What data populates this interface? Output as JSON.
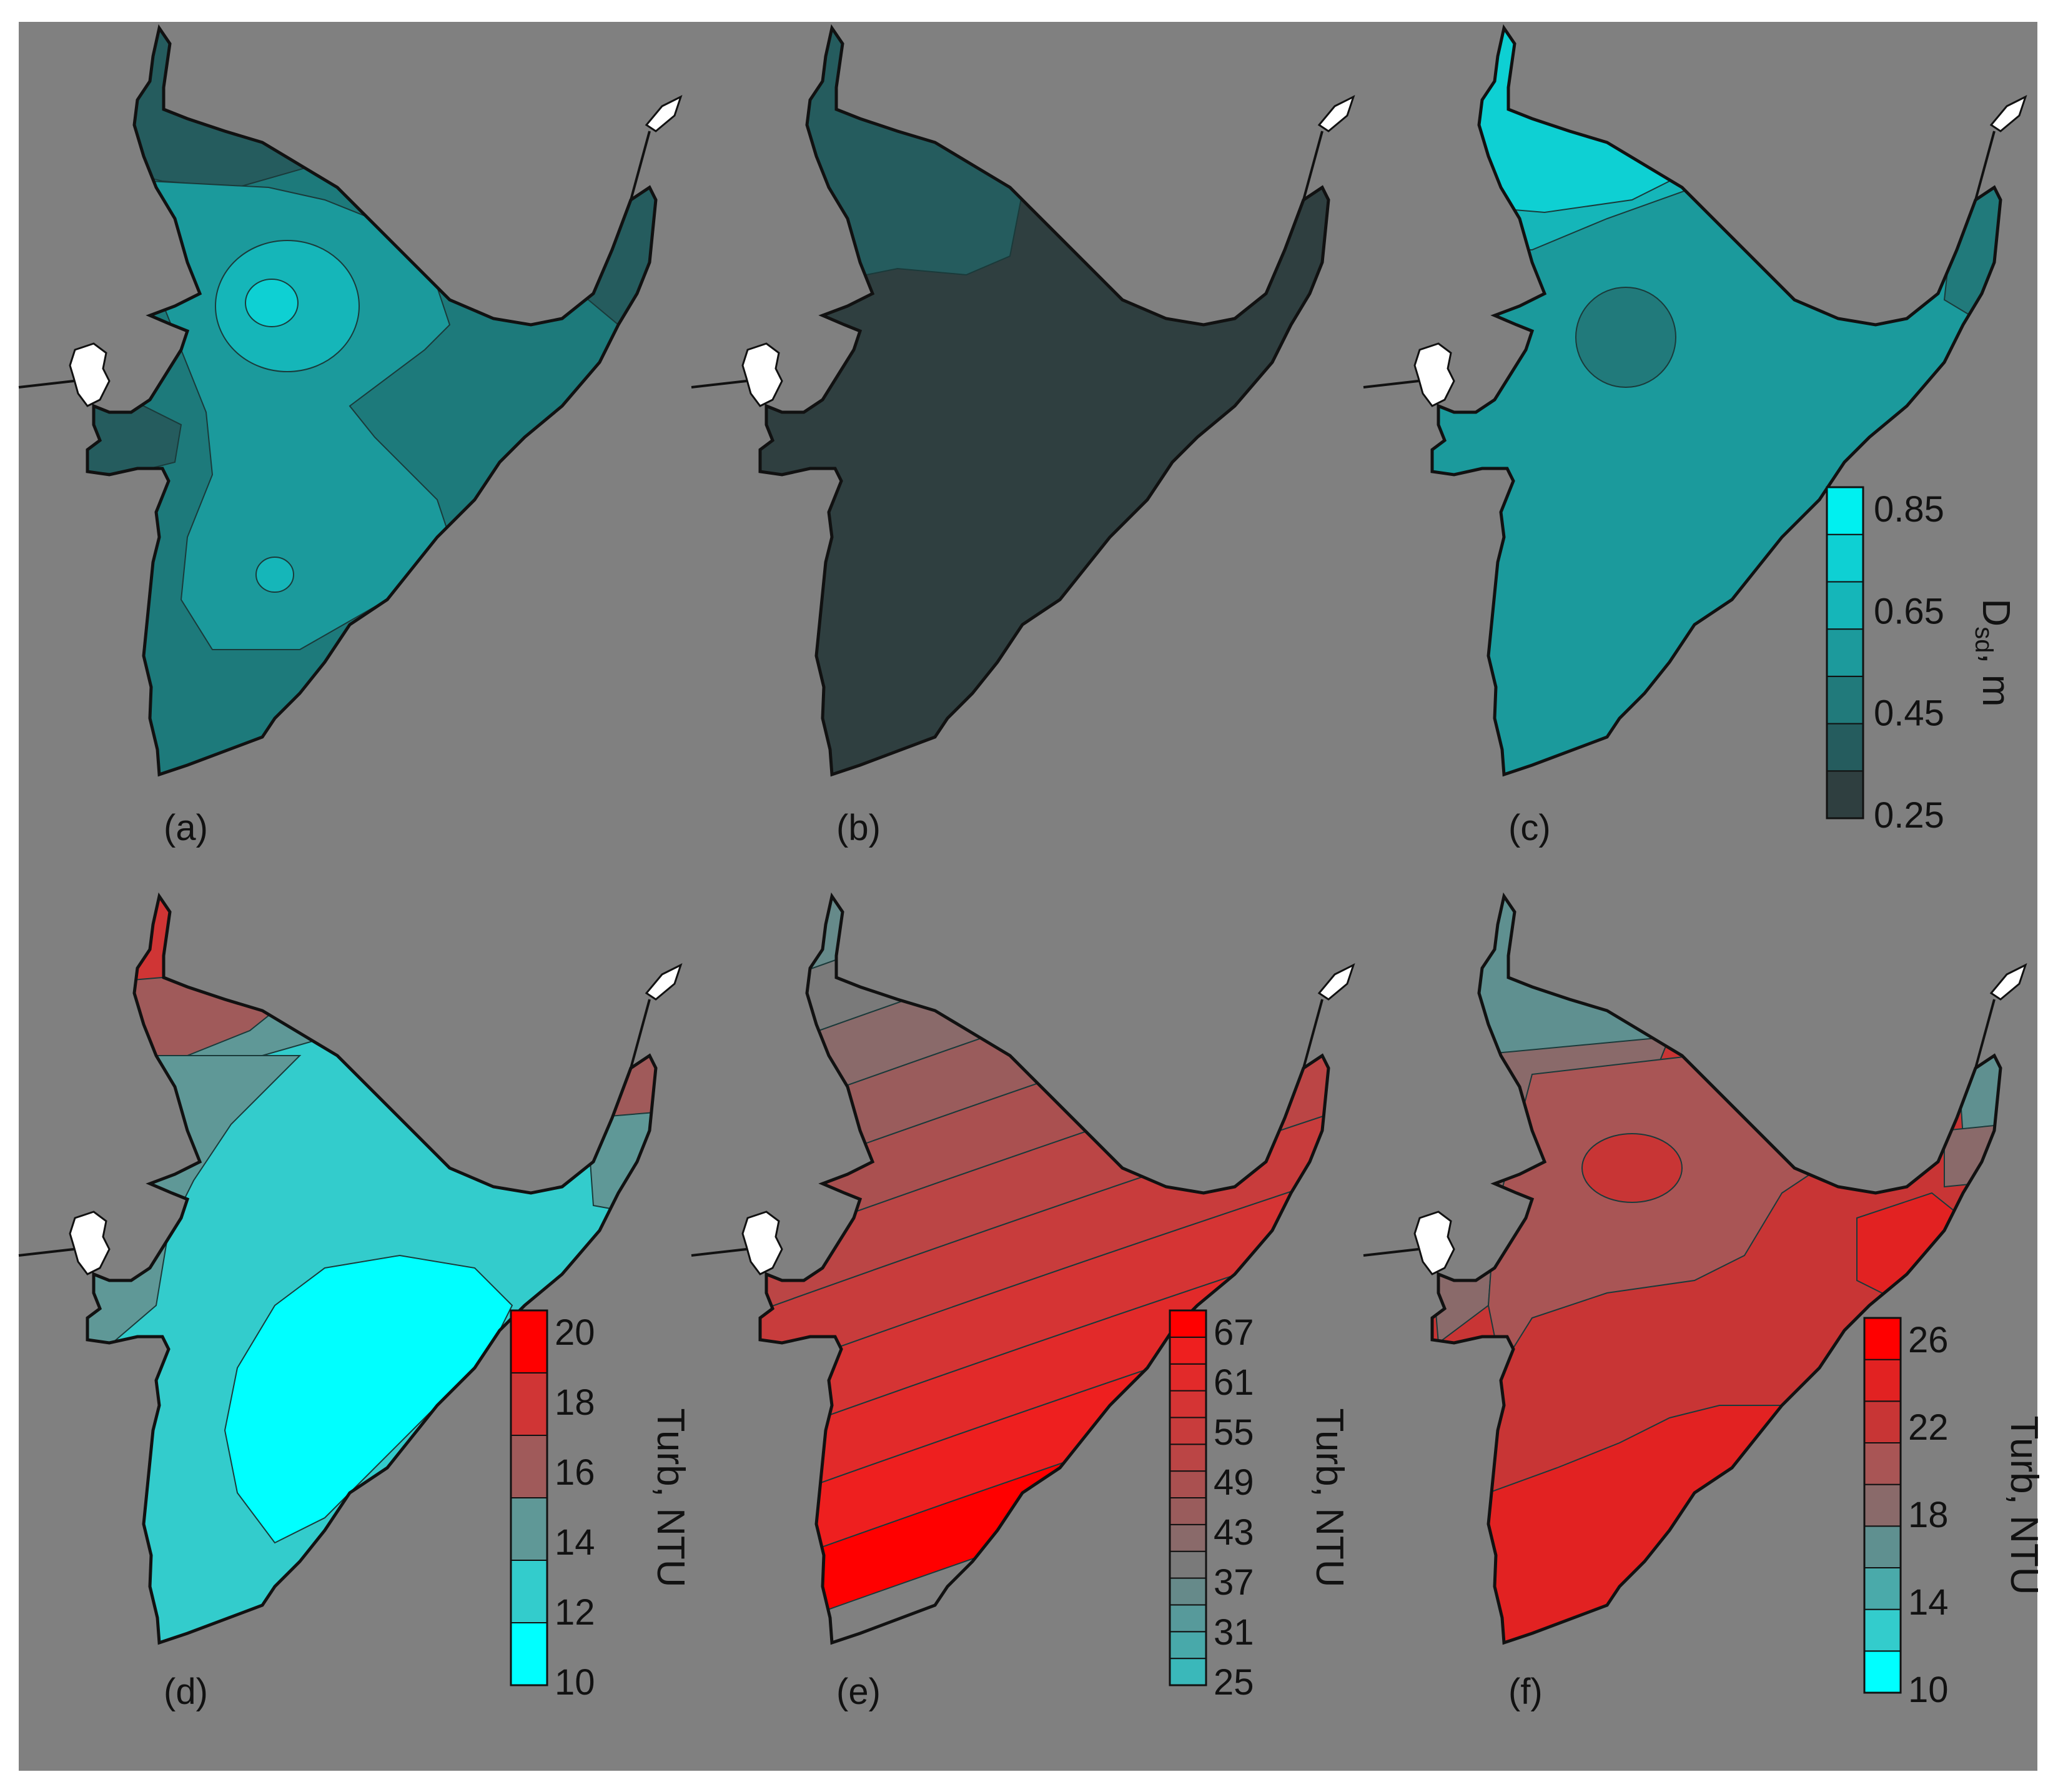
{
  "panels": [
    {
      "label": "(a)"
    },
    {
      "label": "(b)"
    },
    {
      "label": "(c)"
    },
    {
      "label": "(d)"
    },
    {
      "label": "(e)"
    },
    {
      "label": "(f)"
    }
  ],
  "legends": {
    "secchi": {
      "title_main": "D",
      "title_sub": "sd",
      "title_rest": ", m",
      "ticks": [
        "0.85",
        "0.65",
        "0.45",
        "0.25"
      ],
      "colors": [
        "#2f3f40",
        "#255c5e",
        "#217a7b",
        "#1c9a9c",
        "#15b6b9",
        "#0ed0d3",
        "#00f0f0"
      ]
    },
    "turb_d": {
      "title": "Turb, NTU",
      "ticks": [
        "20",
        "18",
        "16",
        "14",
        "12",
        "10"
      ],
      "colors": [
        "#00ffff",
        "#33cccc",
        "#5f9897",
        "#a05a5a",
        "#d03535",
        "#ff0000"
      ]
    },
    "turb_e": {
      "title": "Turb, NTU",
      "ticks": [
        "67",
        "61",
        "55",
        "49",
        "43",
        "37",
        "31",
        "25"
      ],
      "colors": [
        "#3ab8ba",
        "#48a9aa",
        "#579a9b",
        "#668a8a",
        "#7a7a7a",
        "#8a6a6a",
        "#9a5c5c",
        "#aa5050",
        "#bb4545",
        "#c83c3c",
        "#d53434",
        "#e22a2a",
        "#ee1f1f",
        "#ff0000"
      ]
    },
    "turb_f": {
      "title": "Turb, NTU",
      "ticks": [
        "26",
        "22",
        "18",
        "14",
        "10"
      ],
      "colors": [
        "#00ffff",
        "#33cccc",
        "#4aaaaa",
        "#5f9090",
        "#8a6a6a",
        "#a95555",
        "#c83535",
        "#e22222",
        "#ff0000"
      ]
    }
  },
  "panel_colors": {
    "a": {
      "base": "#1d7a7b",
      "north": "#255c5e",
      "mid": "#1b9a9c",
      "center": "#15b6b9",
      "core": "#0ed0d3",
      "east": "#217a7b"
    },
    "b": {
      "base": "#2f3f40",
      "north": "#255c5e"
    },
    "c": {
      "base": "#1b9a9c",
      "north": "#0ed0d3",
      "spot": "#217a7b"
    },
    "d": {
      "base": "#33cccc",
      "north": "#d03535",
      "band": "#a05a5a",
      "mid": "#5f9897",
      "core": "#00ffff"
    },
    "e": {
      "bands": [
        "#3ab8ba",
        "#48a9aa",
        "#579a9b",
        "#668a8a",
        "#7a7a7a",
        "#8a6a6a",
        "#9a5c5c",
        "#aa5050",
        "#bb4545",
        "#c83c3c",
        "#d53434",
        "#e22a2a",
        "#ee1f1f",
        "#ff0000"
      ]
    },
    "f": {
      "base": "#c83535",
      "north": "#5f9090",
      "band": "#8a6a6a",
      "mid": "#a95555",
      "south": "#e22222",
      "east": "#e22222"
    }
  }
}
